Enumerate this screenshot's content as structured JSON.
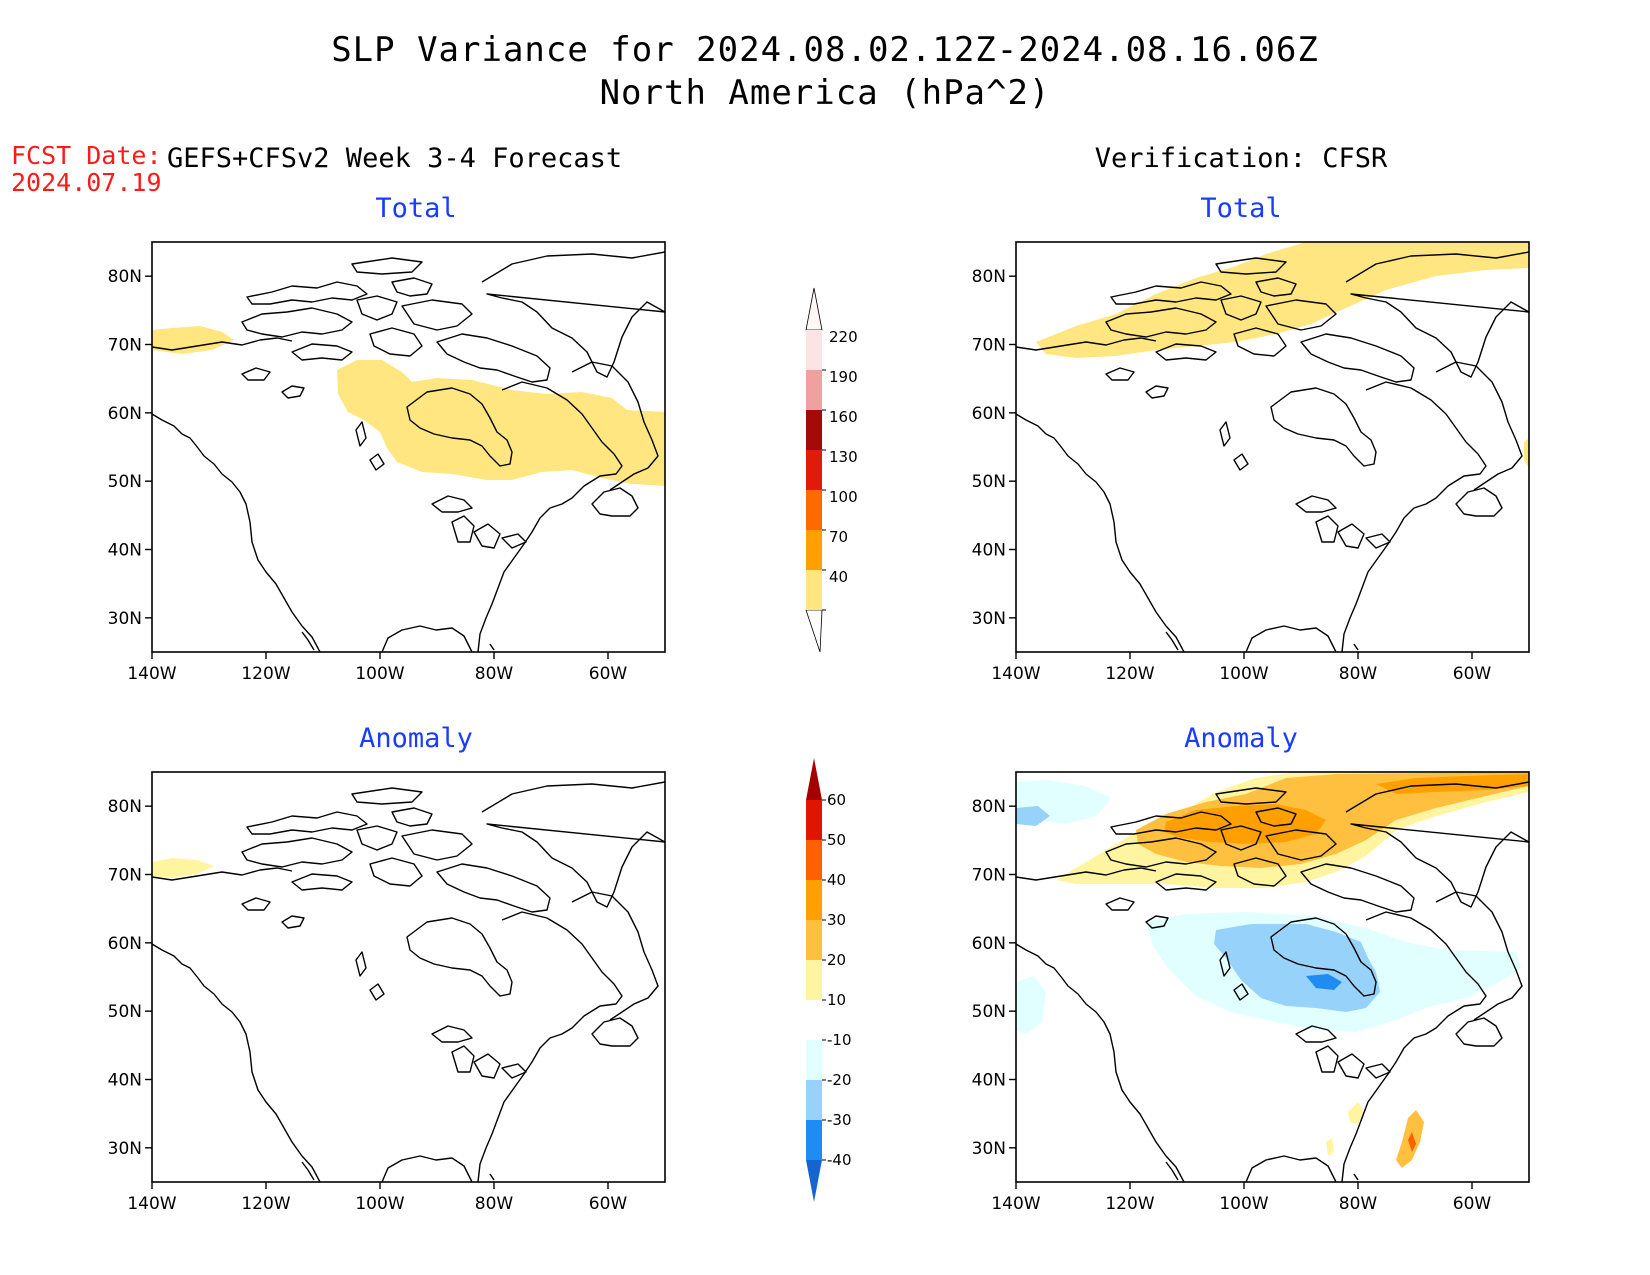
{
  "header": {
    "title_line1": "SLP Variance for 2024.08.02.12Z-2024.08.16.06Z",
    "title_line2": "North America (hPa^2)",
    "fcst_date_label": "FCST Date:",
    "fcst_date_value": "2024.07.19",
    "forecast_heading": "GEFS+CFSv2 Week 3-4 Forecast",
    "verification_heading": "Verification: CFSR"
  },
  "panels": {
    "forecast_total": "Total",
    "verification_total": "Total",
    "forecast_anomaly": "Anomaly",
    "verification_anomaly": "Anomaly"
  },
  "axes": {
    "lat_labels": [
      "80N",
      "70N",
      "60N",
      "50N",
      "40N",
      "30N"
    ],
    "lat_values": [
      80,
      70,
      60,
      50,
      40,
      30
    ],
    "lon_labels": [
      "140W",
      "120W",
      "100W",
      "80W",
      "60W"
    ],
    "lon_values": [
      -140,
      -120,
      -100,
      -80,
      -60
    ],
    "lon_range": [
      -140,
      -50
    ],
    "lat_range": [
      25,
      85
    ]
  },
  "colorbars": {
    "total": {
      "labels": [
        "40",
        "70",
        "100",
        "130",
        "160",
        "190",
        "220"
      ],
      "colors": [
        "#ffe680",
        "#ffa000",
        "#ff6a00",
        "#e11a0a",
        "#a50a0a",
        "#f0a0a0",
        "#fde4e4"
      ]
    },
    "anomaly": {
      "labels": [
        "-40",
        "-30",
        "-20",
        "-10",
        "10",
        "20",
        "30",
        "40",
        "50",
        "60"
      ],
      "colors": [
        "#1464d2",
        "#1e8cf0",
        "#96d2fa",
        "#e0fffe",
        "#ffffff",
        "#fff5a0",
        "#ffc040",
        "#ffa000",
        "#ff6000",
        "#e11400",
        "#a50000"
      ]
    }
  },
  "colors": {
    "title_blue": "#1a3cff",
    "fcst_red": "#ff1a1a",
    "light_yellow": "#ffe680",
    "orange": "#ffa000",
    "dark_orange": "#ff6000",
    "light_cyan": "#e0fffe",
    "light_blue": "#96d2fa",
    "blue": "#1e8cf0"
  }
}
